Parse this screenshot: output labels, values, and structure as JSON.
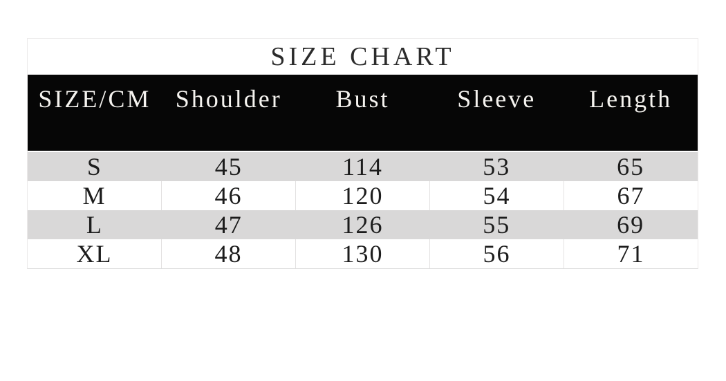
{
  "title": "SIZE CHART",
  "table": {
    "headers": [
      "SIZE/CM",
      "Shoulder",
      "Bust",
      "Sleeve",
      "Length"
    ],
    "rows": [
      {
        "size": "S",
        "values": [
          "45",
          "114",
          "53",
          "65"
        ]
      },
      {
        "size": "M",
        "values": [
          "46",
          "120",
          "54",
          "67"
        ]
      },
      {
        "size": "L",
        "values": [
          "47",
          "126",
          "55",
          "69"
        ]
      },
      {
        "size": "XL",
        "values": [
          "48",
          "130",
          "56",
          "71"
        ]
      }
    ]
  },
  "chart_data": {
    "type": "table",
    "title": "SIZE CHART",
    "columns": [
      "SIZE/CM",
      "Shoulder",
      "Bust",
      "Sleeve",
      "Length"
    ],
    "rows": [
      [
        "S",
        45,
        114,
        53,
        65
      ],
      [
        "M",
        46,
        120,
        54,
        67
      ],
      [
        "L",
        47,
        126,
        55,
        69
      ],
      [
        "XL",
        48,
        130,
        56,
        71
      ]
    ]
  },
  "colors": {
    "header_bg": "#060606",
    "header_text": "#f5f3ef",
    "row_alt_bg": "#d9d8d8",
    "row_bg": "#ffffff",
    "body_text": "#1c1c1c",
    "border": "#e3e1e1"
  }
}
